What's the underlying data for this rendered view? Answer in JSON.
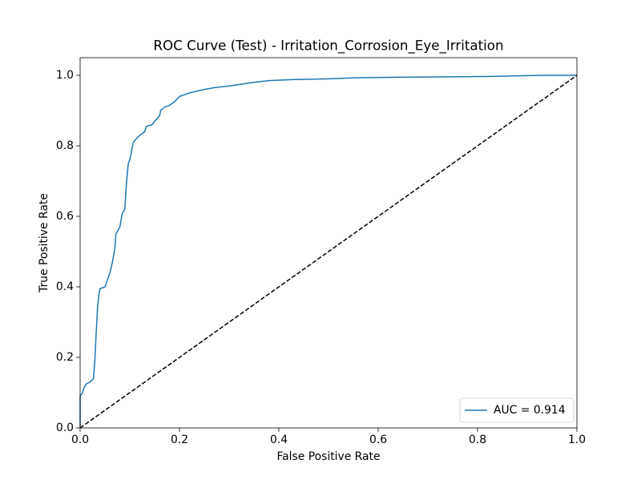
{
  "chart_data": {
    "type": "line",
    "title": "ROC Curve (Test) - Irritation_Corrosion_Eye_Irritation",
    "x_label": "False Positive Rate",
    "y_label": "True Positive Rate",
    "xlim": [
      0,
      1
    ],
    "ylim": [
      0,
      1.05
    ],
    "xticks": [
      {
        "value": 0,
        "label": "0.0"
      },
      0.2,
      0.4,
      0.6,
      0.8,
      {
        "value": 1,
        "label": "1.0"
      }
    ],
    "yticks": [
      {
        "value": 0,
        "label": "0.0"
      },
      0.2,
      0.4,
      0.6,
      0.8,
      {
        "value": 1,
        "label": "1.0"
      }
    ],
    "legend": "lower right",
    "series": [
      {
        "name": "AUC = 0.914",
        "color": "#1f77b4",
        "x": [
          0,
          0,
          0.005,
          0.008,
          0.013,
          0.02,
          0.027,
          0.03,
          0.032,
          0.035,
          0.038,
          0.04,
          0.05,
          0.055,
          0.06,
          0.065,
          0.07,
          0.072,
          0.08,
          0.085,
          0.09,
          0.093,
          0.097,
          0.1,
          0.107,
          0.113,
          0.12,
          0.13,
          0.133,
          0.145,
          0.15,
          0.16,
          0.162,
          0.17,
          0.18,
          0.19,
          0.2,
          0.21,
          0.22,
          0.25,
          0.27,
          0.3,
          0.35,
          0.38,
          0.43,
          0.5,
          0.55,
          0.67,
          0.83,
          0.93,
          1
        ],
        "values": [
          0,
          0.09,
          0.1,
          0.115,
          0.125,
          0.13,
          0.14,
          0.2,
          0.26,
          0.34,
          0.38,
          0.395,
          0.4,
          0.42,
          0.44,
          0.47,
          0.51,
          0.55,
          0.57,
          0.61,
          0.62,
          0.69,
          0.75,
          0.76,
          0.81,
          0.82,
          0.83,
          0.84,
          0.855,
          0.86,
          0.87,
          0.885,
          0.9,
          0.91,
          0.915,
          0.925,
          0.94,
          0.945,
          0.95,
          0.96,
          0.965,
          0.97,
          0.98,
          0.985,
          0.988,
          0.99,
          0.993,
          0.995,
          0.997,
          1,
          1
        ]
      }
    ],
    "reference_line": {
      "x": [
        0,
        1
      ],
      "values": [
        0,
        1
      ],
      "color": "#000000",
      "style": "dashed"
    }
  }
}
